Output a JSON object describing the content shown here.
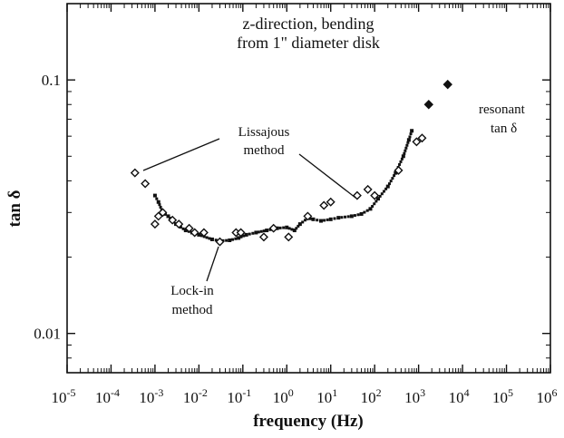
{
  "chart_data": {
    "type": "scatter",
    "title": [
      "z-direction, bending",
      "from 1\" diameter disk"
    ],
    "xlabel": "frequency (Hz)",
    "ylabel": "tan δ",
    "xscale": "log",
    "yscale": "log",
    "xlim": [
      1e-05,
      1000000.0
    ],
    "ylim": [
      0.007,
      0.2
    ],
    "x_ticks": [
      {
        "value": 1e-05,
        "base": "10",
        "exp": "-5"
      },
      {
        "value": 0.0001,
        "base": "10",
        "exp": "-4"
      },
      {
        "value": 0.001,
        "base": "10",
        "exp": "-3"
      },
      {
        "value": 0.01,
        "base": "10",
        "exp": "-2"
      },
      {
        "value": 0.1,
        "base": "10",
        "exp": "-1"
      },
      {
        "value": 1.0,
        "base": "10",
        "exp": "0"
      },
      {
        "value": 10.0,
        "base": "10",
        "exp": "1"
      },
      {
        "value": 100.0,
        "base": "10",
        "exp": "2"
      },
      {
        "value": 1000.0,
        "base": "10",
        "exp": "3"
      },
      {
        "value": 10000.0,
        "base": "10",
        "exp": "4"
      },
      {
        "value": 100000.0,
        "base": "10",
        "exp": "5"
      },
      {
        "value": 1000000.0,
        "base": "10",
        "exp": "6"
      }
    ],
    "y_ticks": [
      {
        "value": 0.01,
        "label": "0.01"
      },
      {
        "value": 0.1,
        "label": "0.1"
      }
    ],
    "grid": false,
    "series": [
      {
        "name": "Lissajous method",
        "marker": "open-diamond",
        "points": [
          [
            0.00035,
            0.043
          ],
          [
            0.0006,
            0.039
          ],
          [
            0.001,
            0.027
          ],
          [
            0.0012,
            0.029
          ],
          [
            0.0015,
            0.03
          ],
          [
            0.0025,
            0.028
          ],
          [
            0.0035,
            0.027
          ],
          [
            0.006,
            0.026
          ],
          [
            0.008,
            0.025
          ],
          [
            0.013,
            0.025
          ],
          [
            0.03,
            0.023
          ],
          [
            0.07,
            0.025
          ],
          [
            0.09,
            0.025
          ],
          [
            0.3,
            0.024
          ],
          [
            0.5,
            0.026
          ],
          [
            1.1,
            0.024
          ],
          [
            3,
            0.029
          ],
          [
            7,
            0.032
          ],
          [
            10,
            0.033
          ],
          [
            40,
            0.035
          ],
          [
            70,
            0.037
          ],
          [
            100,
            0.035
          ],
          [
            350,
            0.044
          ],
          [
            900,
            0.057
          ],
          [
            1200,
            0.059
          ]
        ]
      },
      {
        "name": "Lock-in method",
        "marker": "small-filled",
        "points": [
          [
            0.001,
            0.035
          ],
          [
            0.0012,
            0.033
          ],
          [
            0.0015,
            0.03
          ],
          [
            0.002,
            0.029
          ],
          [
            0.003,
            0.027
          ],
          [
            0.005,
            0.0255
          ],
          [
            0.007,
            0.025
          ],
          [
            0.01,
            0.0245
          ],
          [
            0.02,
            0.0235
          ],
          [
            0.03,
            0.0232
          ],
          [
            0.05,
            0.0233
          ],
          [
            0.08,
            0.0238
          ],
          [
            0.12,
            0.0245
          ],
          [
            0.2,
            0.025
          ],
          [
            0.35,
            0.0255
          ],
          [
            0.6,
            0.026
          ],
          [
            1,
            0.0262
          ],
          [
            1.5,
            0.0255
          ],
          [
            2,
            0.027
          ],
          [
            3,
            0.0285
          ],
          [
            4,
            0.0282
          ],
          [
            6,
            0.0278
          ],
          [
            10,
            0.0282
          ],
          [
            15,
            0.0286
          ],
          [
            30,
            0.029
          ],
          [
            50,
            0.0296
          ],
          [
            80,
            0.031
          ],
          [
            120,
            0.034
          ],
          [
            200,
            0.038
          ],
          [
            300,
            0.043
          ],
          [
            450,
            0.05
          ],
          [
            600,
            0.058
          ],
          [
            700,
            0.063
          ]
        ]
      },
      {
        "name": "resonant tan δ",
        "marker": "filled-diamond",
        "points": [
          [
            1700,
            0.08
          ],
          [
            4600,
            0.096
          ]
        ]
      }
    ],
    "annotations": [
      {
        "lines": [
          "Lissajous",
          "method"
        ],
        "target": "Lissajous method"
      },
      {
        "lines": [
          "Lock-in",
          "method"
        ],
        "target": "Lock-in method"
      },
      {
        "lines": [
          "resonant",
          "tan δ"
        ],
        "target": "resonant tan δ"
      }
    ]
  }
}
